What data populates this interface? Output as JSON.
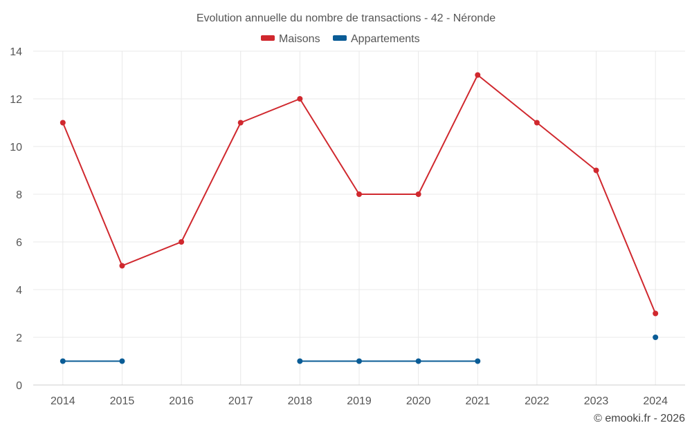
{
  "chart_data": {
    "type": "line",
    "title": "Evolution annuelle du nombre de transactions - 42 - Néronde",
    "categories": [
      "2014",
      "2015",
      "2016",
      "2017",
      "2018",
      "2019",
      "2020",
      "2021",
      "2022",
      "2023",
      "2024"
    ],
    "series": [
      {
        "name": "Maisons",
        "color": "#d0282e",
        "values": [
          11,
          5,
          6,
          11,
          12,
          8,
          8,
          13,
          11,
          9,
          3
        ]
      },
      {
        "name": "Appartements",
        "color": "#0a5c96",
        "values": [
          1,
          1,
          null,
          null,
          1,
          1,
          1,
          1,
          null,
          null,
          2
        ]
      }
    ],
    "ylim": [
      0,
      14
    ],
    "yticks": [
      0,
      2,
      4,
      6,
      8,
      10,
      12,
      14
    ],
    "xlabel": "",
    "ylabel": "",
    "grid": true,
    "legend_position": "top-center"
  },
  "credit": "© emooki.fr - 2026"
}
